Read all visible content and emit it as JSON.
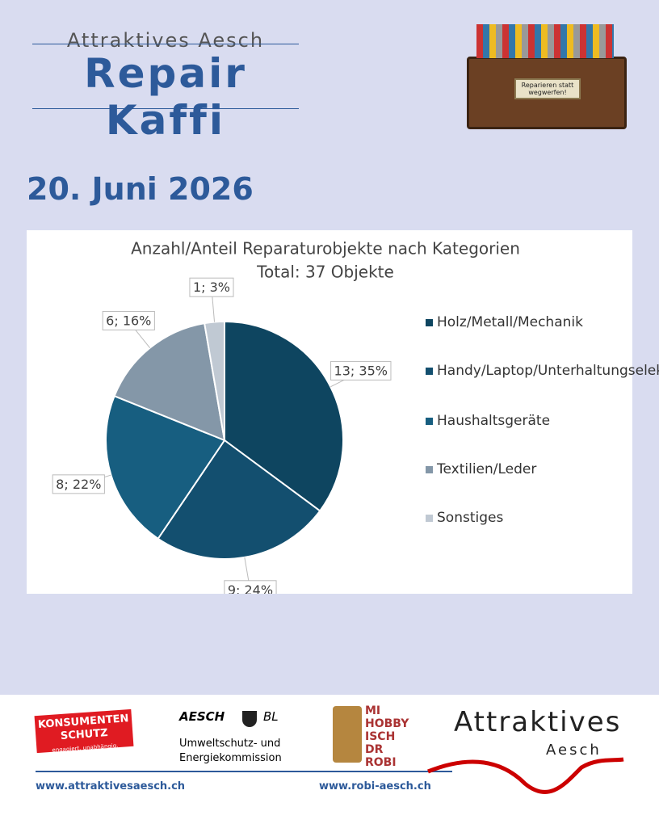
{
  "header": {
    "kicker": "Attraktives Aesch",
    "title": "Repair Kaffi",
    "sign": "Reparieren statt wegwerfen!"
  },
  "date": "20. Juni 2026",
  "chart_data": {
    "type": "pie",
    "title": "Anzahl/Anteil Reparaturobjekte nach Kategorien",
    "subtitle": "Total: 37 Objekte",
    "categories": [
      "Holz/Metall/Mechanik",
      "Handy/Laptop/Unterhaltungselektronik",
      "Haushaltsgeräte",
      "Textilien/Leder",
      "Sonstiges"
    ],
    "values": [
      13,
      9,
      8,
      6,
      1
    ],
    "value_labels": [
      "13; 35%",
      "9; 24%",
      "8; 22%",
      "6; 16%",
      "1; 3%"
    ],
    "colors": [
      "#0e4560",
      "#134f6f",
      "#175e80",
      "#8497a8",
      "#c0c9d3"
    ],
    "legend": "right"
  },
  "footer": {
    "konsumenten": "KONSUMENTEN SCHUTZ",
    "konsumenten_tagline": "engagiert. unabhängig.",
    "aesch": "AESCH",
    "bl": "BL",
    "kommission": "Umweltschutz- und Energiekommission",
    "robi": "MI HOBBY ISCH DR ROBI",
    "attraktives": "Attraktives",
    "aesch_town": "Aesch",
    "url1": "www.attraktivesaesch.ch",
    "url2": "www.robi-aesch.ch"
  }
}
